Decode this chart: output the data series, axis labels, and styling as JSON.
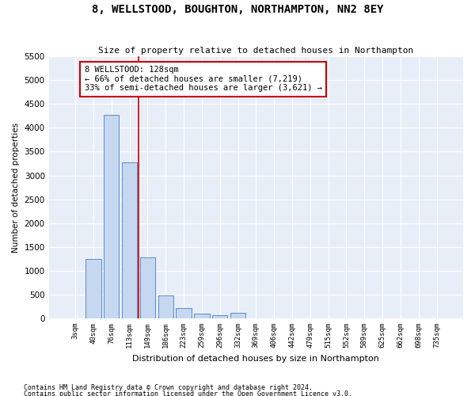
{
  "title": "8, WELLSTOOD, BOUGHTON, NORTHAMPTON, NN2 8EY",
  "subtitle": "Size of property relative to detached houses in Northampton",
  "xlabel": "Distribution of detached houses by size in Northampton",
  "ylabel": "Number of detached properties",
  "footnote1": "Contains HM Land Registry data © Crown copyright and database right 2024.",
  "footnote2": "Contains public sector information licensed under the Open Government Licence v3.0.",
  "annotation_line1": "8 WELLSTOOD: 128sqm",
  "annotation_line2": "← 66% of detached houses are smaller (7,219)",
  "annotation_line3": "33% of semi-detached houses are larger (3,621) →",
  "bar_color": "#c5d8f0",
  "bar_edge_color": "#5a8ac8",
  "line_color": "#cc0000",
  "annotation_box_edge": "#cc0000",
  "background_color": "#e8eef8",
  "categories": [
    "3sqm",
    "40sqm",
    "76sqm",
    "113sqm",
    "149sqm",
    "186sqm",
    "223sqm",
    "259sqm",
    "296sqm",
    "332sqm",
    "369sqm",
    "406sqm",
    "442sqm",
    "479sqm",
    "515sqm",
    "552sqm",
    "589sqm",
    "625sqm",
    "662sqm",
    "698sqm",
    "735sqm"
  ],
  "values": [
    0,
    1250,
    4280,
    3280,
    1280,
    480,
    210,
    100,
    70,
    110,
    0,
    0,
    0,
    0,
    0,
    0,
    0,
    0,
    0,
    0,
    0
  ],
  "ylim": [
    0,
    5500
  ],
  "yticks": [
    0,
    500,
    1000,
    1500,
    2000,
    2500,
    3000,
    3500,
    4000,
    4500,
    5000,
    5500
  ],
  "red_line_x": 3.5,
  "figsize": [
    6.0,
    5.0
  ],
  "dpi": 100
}
